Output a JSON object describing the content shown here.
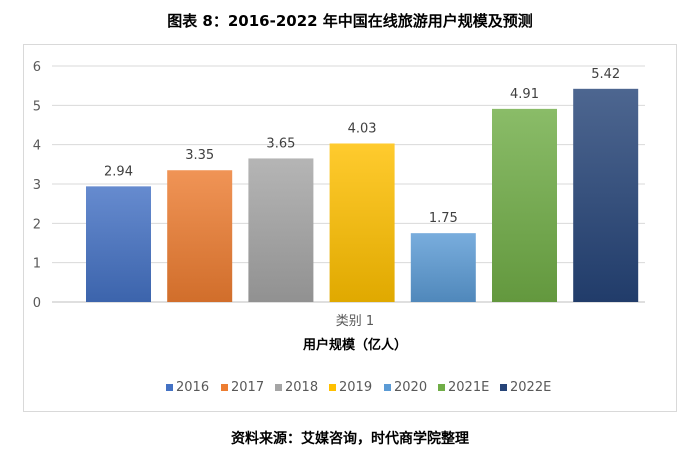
{
  "figure_title": "图表 8：2016-2022 年中国在线旅游用户规模及预测",
  "source_note": "资料来源：艾媒咨询，时代商学院整理",
  "chart_data": {
    "type": "bar",
    "categories": [
      "类别 1"
    ],
    "xlabel": "用户规模（亿人）",
    "ylabel": "",
    "ylim": [
      0,
      6
    ],
    "yticks": [
      0,
      1,
      2,
      3,
      4,
      5,
      6
    ],
    "grid": true,
    "legend_position": "bottom",
    "series": [
      {
        "name": "2016",
        "values": [
          2.94
        ],
        "label": "2.94",
        "color": "#4472C4"
      },
      {
        "name": "2017",
        "values": [
          3.35
        ],
        "label": "3.35",
        "color": "#ED7D31"
      },
      {
        "name": "2018",
        "values": [
          3.65
        ],
        "label": "3.65",
        "color": "#A5A5A5"
      },
      {
        "name": "2019",
        "values": [
          4.03
        ],
        "label": "4.03",
        "color": "#FFC000"
      },
      {
        "name": "2020",
        "values": [
          1.75
        ],
        "label": "1.75",
        "color": "#5B9BD5"
      },
      {
        "name": "2021E",
        "values": [
          4.91
        ],
        "label": "4.91",
        "color": "#70AD47"
      },
      {
        "name": "2022E",
        "values": [
          5.42
        ],
        "label": "5.42",
        "color": "#264478"
      }
    ]
  }
}
